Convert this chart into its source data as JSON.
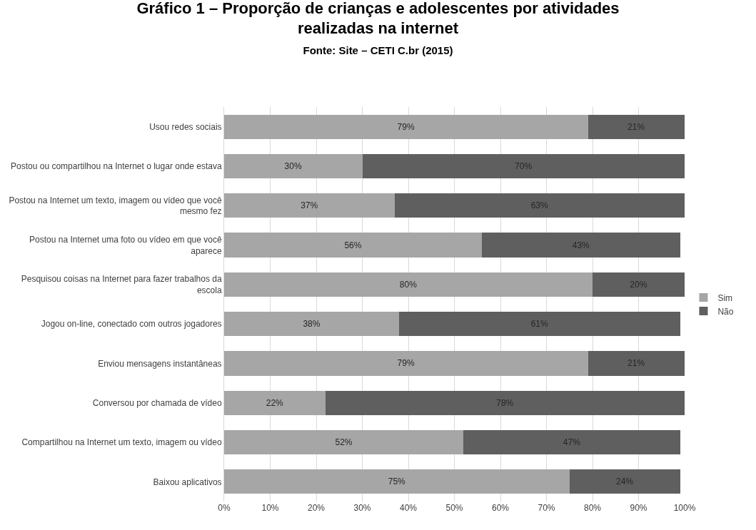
{
  "chart_data": {
    "type": "bar",
    "orientation": "horizontal",
    "stacked": true,
    "title": "Gráfico 1 – Proporção de crianças e adolescentes por atividades realizadas na internet",
    "subtitle": "Fonte: Site – CETI C.br (2015)",
    "categories": [
      "Usou redes sociais",
      "Postou ou compartilhou na Internet o lugar onde estava",
      "Postou na Internet um texto, imagem ou vídeo que você mesmo fez",
      "Postou na Internet uma foto ou vídeo em que você aparece",
      "Pesquisou coisas na Internet para fazer trabalhos da escola",
      "Jogou on-line, conectado com outros jogadores",
      "Enviou mensagens instantâneas",
      "Conversou por chamada de vídeo",
      "Compartilhou na Internet um texto, imagem ou vídeo",
      "Baixou aplicativos"
    ],
    "series": [
      {
        "name": "Sim",
        "color": "#a6a6a6",
        "values": [
          79,
          30,
          37,
          56,
          80,
          38,
          79,
          22,
          52,
          75
        ],
        "value_labels": [
          "79%",
          "30%",
          "37%",
          "56%",
          "80%",
          "38%",
          "79%",
          "22%",
          "52%",
          "75%"
        ]
      },
      {
        "name": "Não",
        "color": "#5f5f5f",
        "values": [
          21,
          70,
          63,
          43,
          20,
          61,
          21,
          78,
          47,
          24
        ],
        "value_labels": [
          "21%",
          "70%",
          "63%",
          "43%",
          "20%",
          "61%",
          "21%",
          "78%",
          "47%",
          "24%"
        ]
      }
    ],
    "xlim": [
      0,
      100
    ],
    "xticks": [
      {
        "value": 0,
        "label": "0%"
      },
      {
        "value": 10,
        "label": "10%"
      },
      {
        "value": 20,
        "label": "20%"
      },
      {
        "value": 30,
        "label": "30%"
      },
      {
        "value": 40,
        "label": "40%"
      },
      {
        "value": 50,
        "label": "50%"
      },
      {
        "value": 60,
        "label": "60%"
      },
      {
        "value": 70,
        "label": "70%"
      },
      {
        "value": 80,
        "label": "80%"
      },
      {
        "value": 90,
        "label": "90%"
      },
      {
        "value": 100,
        "label": "100%"
      }
    ],
    "grid": "x",
    "legend": "right"
  }
}
